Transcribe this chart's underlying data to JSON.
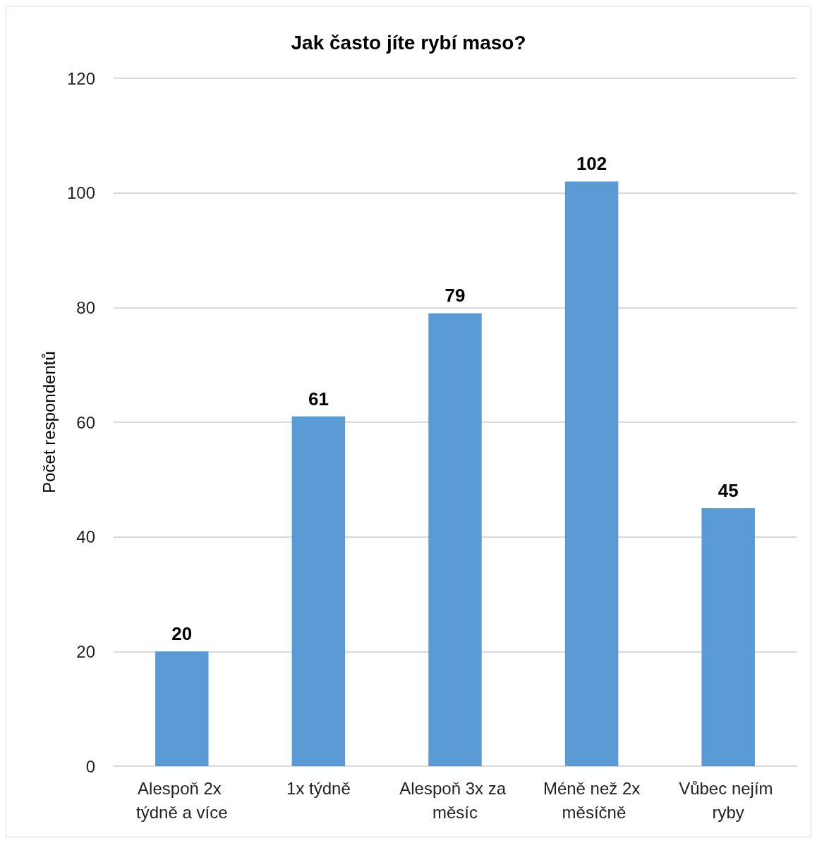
{
  "chart_data": {
    "type": "bar",
    "title": "Jak často jíte rybí maso?",
    "ylabel": "Počet respondentů",
    "categories": [
      "Alespoň 2x týdně a více",
      "1x týdně",
      "Alespoň 3x za měsíc",
      "Méně než 2x měsíčně",
      "Vůbec nejím ryby"
    ],
    "values": [
      20,
      61,
      79,
      102,
      45
    ],
    "color": "#5b9bd5",
    "ylim": [
      0,
      120
    ],
    "yticks": [
      0,
      20,
      40,
      60,
      80,
      100,
      120
    ],
    "grid": "y",
    "data_labels": true
  }
}
